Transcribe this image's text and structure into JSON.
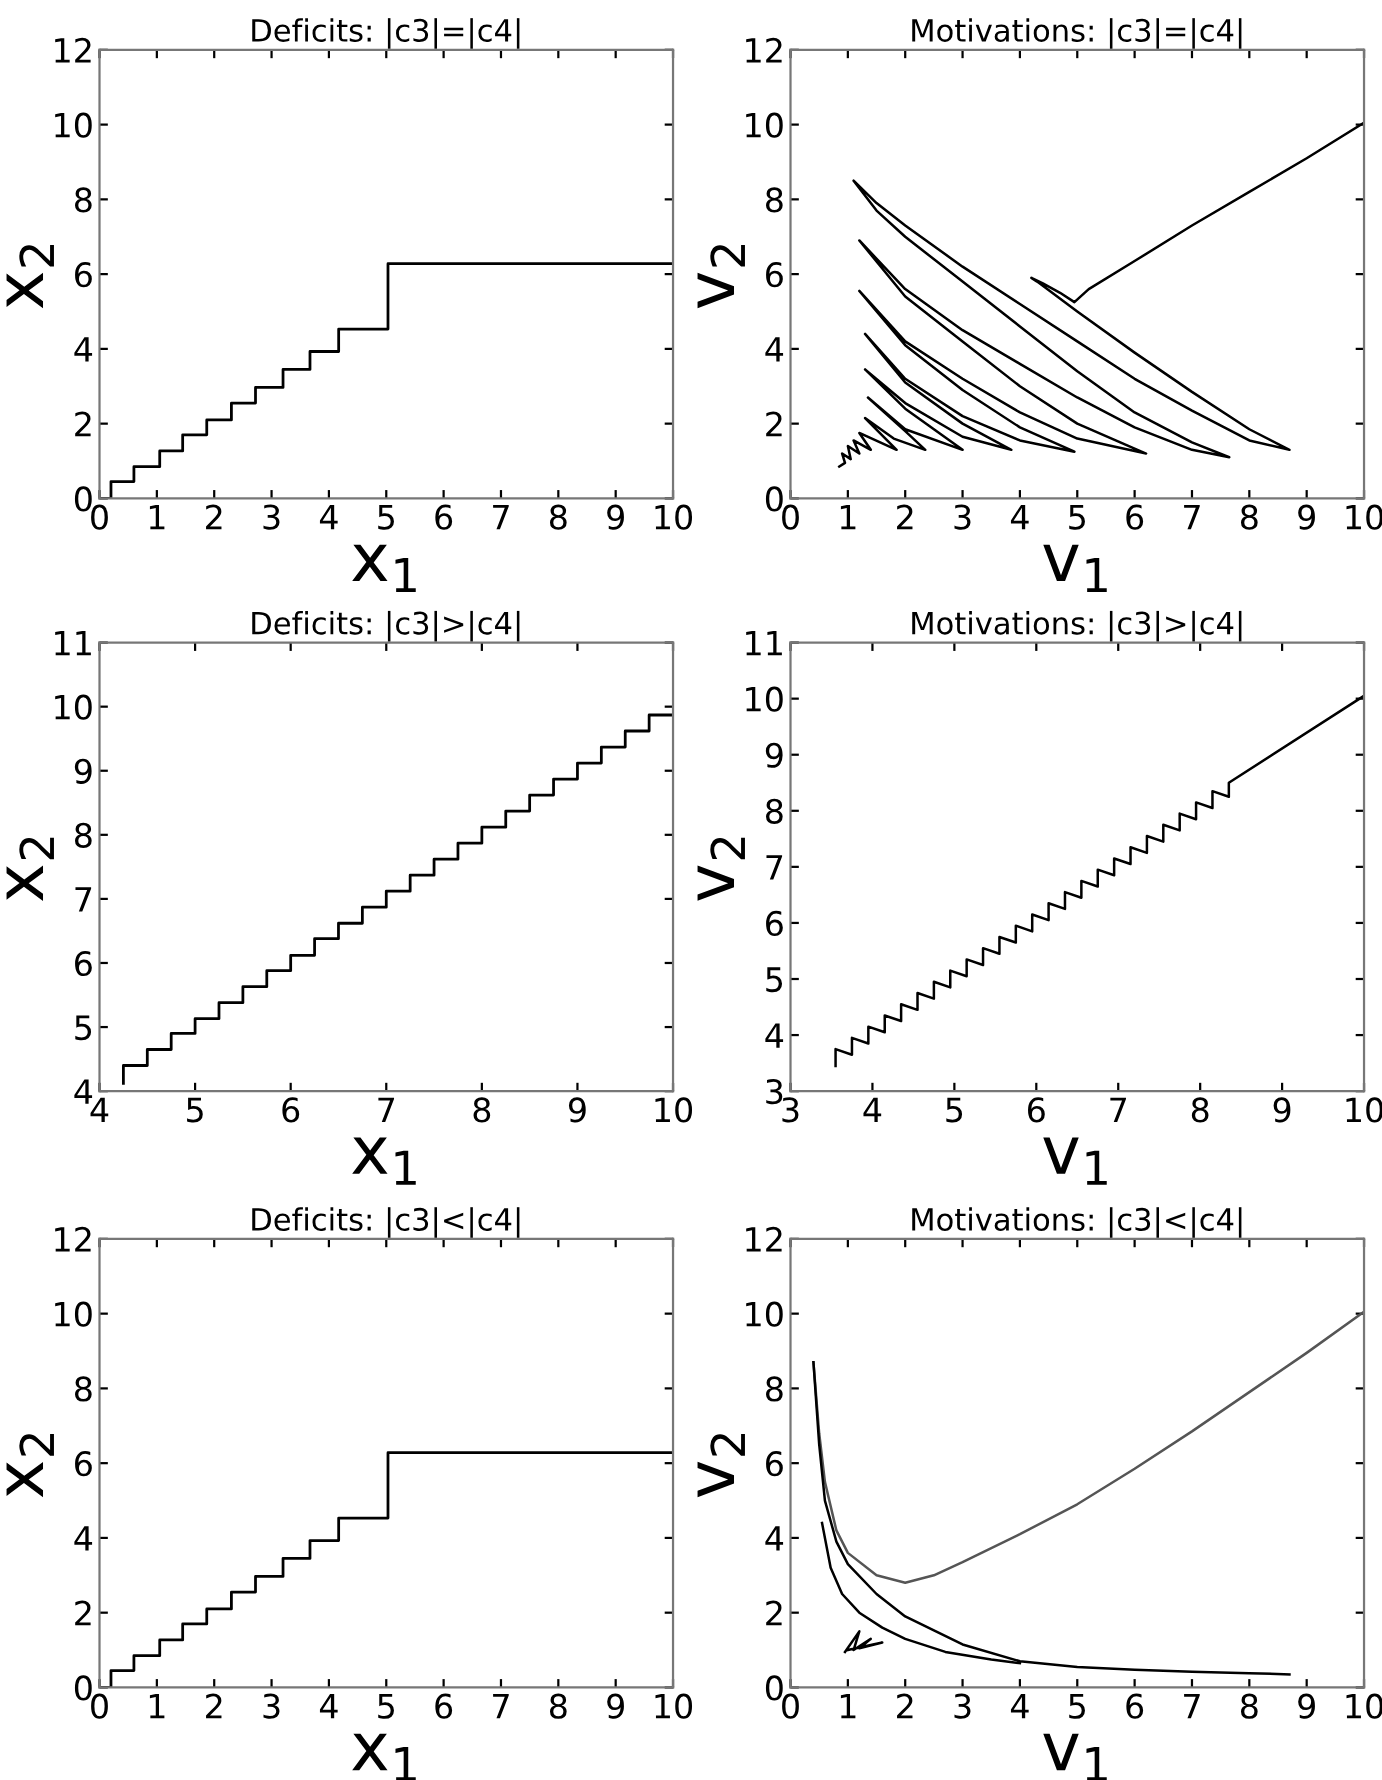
{
  "chart_data": [
    {
      "type": "step",
      "title": "Deficits: |c3|=|c4|",
      "xlabel": "x$_{1}$",
      "ylabel": "x$_{2}$",
      "xlim": [
        0,
        10
      ],
      "ylim": [
        0,
        12
      ],
      "xticks": [
        0,
        1,
        2,
        3,
        4,
        5,
        6,
        7,
        8,
        9,
        10
      ],
      "yticks": [
        0,
        2,
        4,
        6,
        8,
        10,
        12
      ],
      "line_style": "solid",
      "series": [
        {
          "color": "#000000",
          "x": [
            0,
            0.2,
            0.6,
            1.05,
            1.45,
            1.87,
            2.3,
            2.72,
            3.2,
            3.67,
            4.17,
            5.03,
            10
          ],
          "values": [
            0,
            0.45,
            0.85,
            1.27,
            1.7,
            2.1,
            2.55,
            2.97,
            3.45,
            3.93,
            4.53,
            6.28,
            6.28
          ]
        }
      ]
    },
    {
      "type": "line",
      "title": "Motivations: |c3|=|c4|",
      "xlabel": "v$_{1}$",
      "ylabel": "v$_{2}$",
      "xlim": [
        0,
        10
      ],
      "ylim": [
        0,
        12
      ],
      "xticks": [
        0,
        1,
        2,
        3,
        4,
        5,
        6,
        7,
        8,
        9,
        10
      ],
      "yticks": [
        0,
        2,
        4,
        6,
        8,
        10,
        12
      ],
      "line_style": "solid",
      "series": [
        {
          "color": "#000000",
          "x": [
            10,
            9,
            8,
            7,
            6,
            5.2,
            4.95,
            4.7,
            4.4,
            4.2,
            4.3,
            5,
            6,
            7,
            8,
            8.7,
            8,
            7,
            6,
            5,
            4,
            3,
            2,
            1.5,
            1.1,
            1.5,
            2,
            3,
            4,
            5,
            6,
            7,
            7.65,
            7,
            6,
            5,
            4,
            3,
            2,
            1.2,
            2,
            3,
            4,
            5,
            6.2,
            5,
            4,
            3,
            2,
            1.2,
            2,
            3,
            4,
            4.95,
            4,
            3,
            2,
            1.3,
            2,
            3,
            3.85,
            3,
            2,
            1.3,
            2,
            3.0,
            2,
            1.35,
            2,
            2.35,
            1.8,
            1.3,
            1.85,
            1.2,
            1.4,
            1.1,
            1.2,
            1.0,
            1.05,
            0.9,
            0.95,
            0.85
          ],
          "values": [
            10.05,
            9.1,
            8.2,
            7.3,
            6.35,
            5.6,
            5.25,
            5.5,
            5.75,
            5.9,
            5.8,
            5.0,
            3.9,
            2.85,
            1.85,
            1.3,
            1.55,
            2.35,
            3.2,
            4.2,
            5.2,
            6.2,
            7.3,
            7.9,
            8.5,
            7.7,
            7.0,
            5.8,
            4.6,
            3.4,
            2.3,
            1.5,
            1.1,
            1.3,
            1.9,
            2.7,
            3.6,
            4.5,
            5.6,
            6.9,
            5.4,
            4.2,
            3.0,
            2.0,
            1.2,
            1.6,
            2.3,
            3.2,
            4.2,
            5.55,
            4.1,
            2.9,
            1.9,
            1.25,
            1.55,
            2.2,
            3.2,
            4.4,
            3.1,
            2.0,
            1.3,
            1.65,
            2.55,
            3.45,
            2.4,
            1.3,
            1.85,
            2.7,
            1.8,
            1.3,
            1.6,
            2.15,
            1.3,
            1.75,
            1.3,
            1.55,
            1.2,
            1.4,
            1.05,
            1.2,
            0.95,
            0.85
          ]
        }
      ]
    },
    {
      "type": "step",
      "title": "Deficits: |c3|>|c4|",
      "xlabel": "x$_{1}$",
      "ylabel": "x$_{2}$",
      "xlim": [
        4,
        10
      ],
      "ylim": [
        4,
        11
      ],
      "xticks": [
        4,
        5,
        6,
        7,
        8,
        9,
        10
      ],
      "yticks": [
        4,
        5,
        6,
        7,
        8,
        9,
        10,
        11
      ],
      "line_style": "solid",
      "series": [
        {
          "color": "#000000",
          "x": [
            4.25,
            4.25,
            4.5,
            4.75,
            5,
            5.25,
            5.5,
            5.75,
            6,
            6.25,
            6.5,
            6.75,
            7,
            7.25,
            7.5,
            7.75,
            8,
            8.25,
            8.5,
            8.75,
            9,
            9.25,
            9.5,
            9.75,
            10
          ],
          "values": [
            4.12,
            4.4,
            4.65,
            4.9,
            5.13,
            5.38,
            5.63,
            5.88,
            6.12,
            6.38,
            6.62,
            6.87,
            7.12,
            7.37,
            7.62,
            7.87,
            8.12,
            8.37,
            8.62,
            8.87,
            9.12,
            9.37,
            9.62,
            9.87,
            9.87
          ]
        }
      ]
    },
    {
      "type": "line",
      "title": "Motivations: |c3|>|c4|",
      "xlabel": "v$_{1}$",
      "ylabel": "v$_{2}$",
      "xlim": [
        3,
        10
      ],
      "ylim": [
        3,
        11
      ],
      "xticks": [
        3,
        4,
        5,
        6,
        7,
        8,
        9,
        10
      ],
      "yticks": [
        3,
        4,
        5,
        6,
        7,
        8,
        9,
        10,
        11
      ],
      "line_style": "solid",
      "series": [
        {
          "color": "#000000",
          "x": [
            3.55,
            3.55,
            3.75,
            3.75,
            3.95,
            3.95,
            4.15,
            4.15,
            4.35,
            4.35,
            4.55,
            4.55,
            4.75,
            4.75,
            4.95,
            4.95,
            5.15,
            5.15,
            5.35,
            5.35,
            5.55,
            5.55,
            5.75,
            5.75,
            5.95,
            5.95,
            6.15,
            6.15,
            6.35,
            6.35,
            6.55,
            6.55,
            6.75,
            6.75,
            6.95,
            6.95,
            7.15,
            7.15,
            7.35,
            7.35,
            7.55,
            7.55,
            7.75,
            7.75,
            7.95,
            7.95,
            8.15,
            8.15,
            8.35,
            8.35,
            10
          ],
          "values": [
            3.45,
            3.75,
            3.65,
            3.95,
            3.85,
            4.15,
            4.05,
            4.35,
            4.25,
            4.55,
            4.45,
            4.75,
            4.65,
            4.95,
            4.85,
            5.15,
            5.05,
            5.35,
            5.25,
            5.55,
            5.45,
            5.75,
            5.65,
            5.95,
            5.85,
            6.15,
            6.05,
            6.35,
            6.25,
            6.55,
            6.45,
            6.75,
            6.65,
            6.95,
            6.85,
            7.15,
            7.05,
            7.35,
            7.25,
            7.55,
            7.45,
            7.75,
            7.65,
            7.95,
            7.85,
            8.15,
            8.05,
            8.35,
            8.25,
            8.5,
            10.05
          ]
        }
      ]
    },
    {
      "type": "step",
      "title": "Deficits: |c3|<|c4|",
      "xlabel": "x$_{1}$",
      "ylabel": "x$_{2}$",
      "xlim": [
        0,
        10
      ],
      "ylim": [
        0,
        12
      ],
      "xticks": [
        0,
        1,
        2,
        3,
        4,
        5,
        6,
        7,
        8,
        9,
        10
      ],
      "yticks": [
        0,
        2,
        4,
        6,
        8,
        10,
        12
      ],
      "line_style": "solid",
      "series": [
        {
          "color": "#000000",
          "x": [
            0,
            0.2,
            0.6,
            1.05,
            1.45,
            1.87,
            2.3,
            2.72,
            3.2,
            3.67,
            4.17,
            5.03,
            10
          ],
          "values": [
            0,
            0.45,
            0.85,
            1.27,
            1.7,
            2.1,
            2.55,
            2.97,
            3.45,
            3.93,
            4.53,
            6.28,
            6.28
          ]
        }
      ]
    },
    {
      "type": "line",
      "title": "Motivations: |c3|<|c4|",
      "xlabel": "v$_{1}$",
      "ylabel": "v$_{2}$",
      "xlim": [
        0,
        10
      ],
      "ylim": [
        0,
        12
      ],
      "xticks": [
        0,
        1,
        2,
        3,
        4,
        5,
        6,
        7,
        8,
        9,
        10
      ],
      "yticks": [
        0,
        2,
        4,
        6,
        8,
        10,
        12
      ],
      "line_style": "solid",
      "series": [
        {
          "color": "#555555",
          "x": [
            10,
            9,
            8,
            7,
            6,
            5,
            4,
            3,
            2.5,
            2,
            1.5,
            1,
            0.8,
            0.6,
            0.5,
            0.4
          ],
          "values": [
            10.05,
            8.95,
            7.9,
            6.85,
            5.85,
            4.9,
            4.1,
            3.35,
            3.0,
            2.8,
            3.0,
            3.6,
            4.2,
            5.5,
            6.8,
            8.7
          ]
        },
        {
          "color": "#000000",
          "x": [
            0.4,
            0.5,
            0.6,
            0.8,
            1,
            1.5,
            2,
            3,
            4,
            5,
            6,
            7,
            8,
            8.7
          ],
          "values": [
            8.7,
            6.5,
            5.0,
            3.9,
            3.3,
            2.5,
            1.9,
            1.15,
            0.7,
            0.55,
            0.47,
            0.42,
            0.38,
            0.35
          ]
        },
        {
          "color": "#000000",
          "x": [
            0.55,
            0.7,
            0.9,
            1.2,
            1.6,
            2,
            2.7,
            3.5,
            4
          ],
          "values": [
            4.4,
            3.2,
            2.5,
            2.0,
            1.6,
            1.3,
            0.95,
            0.75,
            0.65
          ]
        },
        {
          "color": "#000000",
          "x": [
            0.95,
            1.2,
            1.1,
            1.4,
            1.2,
            1.6,
            1.0
          ],
          "values": [
            0.95,
            1.5,
            1.0,
            1.3,
            1.05,
            1.2,
            1.0
          ]
        }
      ]
    }
  ]
}
